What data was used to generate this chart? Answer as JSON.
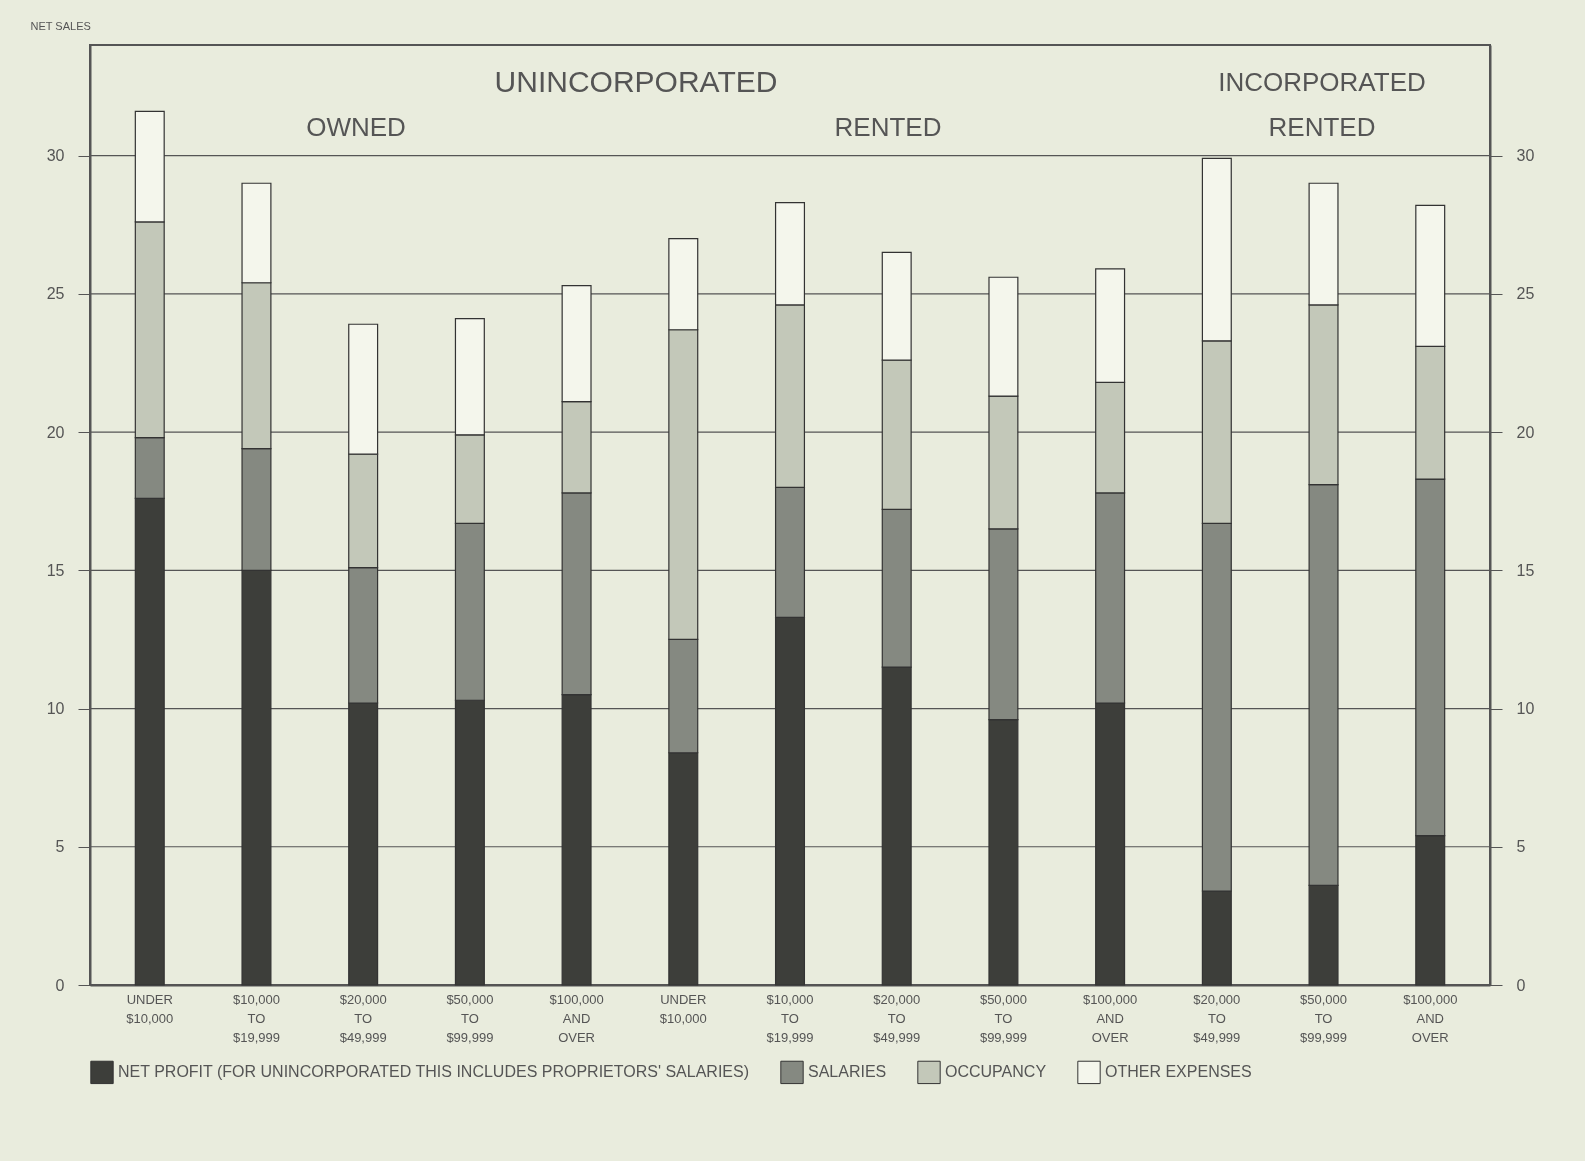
{
  "chart_data": {
    "type": "bar",
    "stacked": true,
    "ylabel": "NET SALES",
    "categories": [
      "UNDER\n$10,000",
      "$10,000\nTO\n$19,999",
      "$20,000\nTO\n$49,999",
      "$50,000\nTO\n$99,999",
      "$100,000\nAND\nOVER",
      "UNDER\n$10,000",
      "$10,000\nTO\n$19,999",
      "$20,000\nTO\n$49,999",
      "$50,000\nTO\n$99,999",
      "$100,000\nAND\nOVER",
      "$20,000\nTO\n$49,999",
      "$50,000\nTO\n$99,999",
      "$100,000\nAND\nOVER"
    ],
    "series": [
      {
        "name": "NET PROFIT (FOR UNINCORPORATED THIS INCLUDES PROPRIETORS' SALARIES)",
        "color": "#3d3e3a",
        "values": [
          17.6,
          15.0,
          10.2,
          10.3,
          10.5,
          8.4,
          13.3,
          11.5,
          9.6,
          10.2,
          3.4,
          3.6,
          5.4
        ]
      },
      {
        "name": "SALARIES",
        "color": "#858981",
        "values": [
          2.2,
          4.4,
          4.9,
          6.4,
          7.3,
          4.1,
          4.7,
          5.7,
          6.9,
          7.6,
          13.3,
          14.5,
          12.9
        ]
      },
      {
        "name": "OCCUPANCY",
        "color": "#c3c8b9",
        "values": [
          7.8,
          6.0,
          4.1,
          3.2,
          3.3,
          11.2,
          6.6,
          5.4,
          4.8,
          4.0,
          6.6,
          6.5,
          4.8
        ]
      },
      {
        "name": "OTHER EXPENSES",
        "color": "#f4f6ec",
        "values": [
          4.0,
          3.6,
          4.7,
          4.2,
          4.2,
          3.3,
          3.7,
          3.9,
          4.3,
          4.1,
          6.6,
          4.4,
          5.1
        ]
      }
    ],
    "ylim": [
      0,
      34
    ],
    "yticks": [
      0,
      5,
      10,
      15,
      20,
      25,
      30
    ],
    "y2lim": [
      0,
      34
    ],
    "y2ticks": [
      0,
      5,
      10,
      15,
      20,
      25,
      30
    ],
    "grid": "y",
    "legend": "bottom",
    "annotations": [
      "UNINCORPORATED",
      "OWNED",
      "RENTED",
      "INCORPORATED",
      "RENTED"
    ]
  }
}
